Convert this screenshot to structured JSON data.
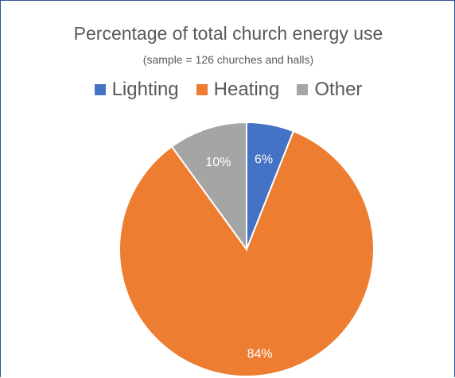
{
  "chart_data": {
    "type": "pie",
    "title": "Percentage of total church energy use",
    "subtitle": "(sample = 126 churches and halls)",
    "legend_position": "top",
    "slices": [
      {
        "name": "Lighting",
        "value": 6,
        "label": "6%",
        "color": "#4472c4"
      },
      {
        "name": "Heating",
        "value": 84,
        "label": "84%",
        "color": "#ed7d31"
      },
      {
        "name": "Other",
        "value": 10,
        "label": "10%",
        "color": "#a5a5a5"
      }
    ]
  }
}
